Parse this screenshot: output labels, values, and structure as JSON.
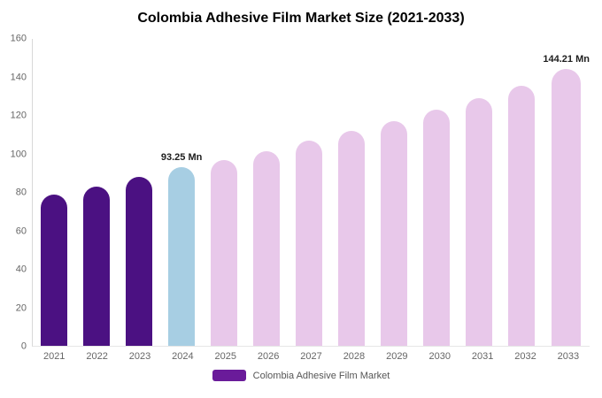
{
  "chart_data": {
    "type": "bar",
    "title": "Colombia Adhesive Film Market Size (2021-2033)",
    "categories": [
      "2021",
      "2022",
      "2023",
      "2024",
      "2025",
      "2026",
      "2027",
      "2028",
      "2029",
      "2030",
      "2031",
      "2032",
      "2033"
    ],
    "values": [
      79,
      83,
      88,
      93.25,
      97,
      101.5,
      107,
      112,
      117,
      123,
      129,
      135.5,
      144.21
    ],
    "unit": "Mn",
    "ylim": [
      0,
      160
    ],
    "yticks": [
      0,
      20,
      40,
      60,
      80,
      100,
      120,
      140,
      160
    ],
    "grid": false,
    "annotations": [
      {
        "index": 3,
        "text": "93.25 Mn"
      },
      {
        "index": 12,
        "text": "144.21 Mn"
      }
    ],
    "colors": {
      "historical": "#4B1182",
      "highlight": "#A7CEE3",
      "forecast": "#E8C8EA"
    },
    "bar_color_keys": [
      "historical",
      "historical",
      "historical",
      "highlight",
      "forecast",
      "forecast",
      "forecast",
      "forecast",
      "forecast",
      "forecast",
      "forecast",
      "forecast",
      "forecast"
    ],
    "legend": {
      "label": "Colombia Adhesive Film Market",
      "color": "#6A1B9A",
      "position": "bottom"
    }
  }
}
